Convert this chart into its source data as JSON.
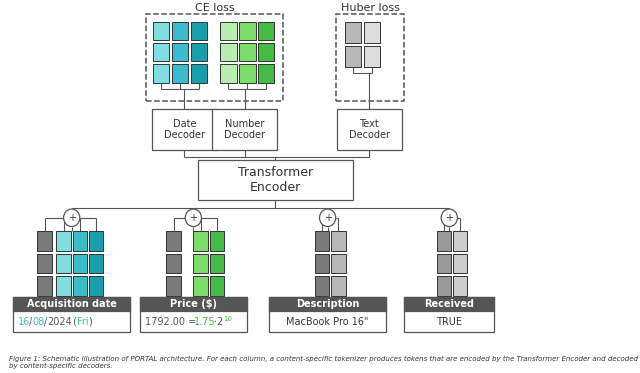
{
  "bg_color": "#ffffff",
  "colors": {
    "teal_dark": "#1b9eab",
    "teal_mid": "#3bbccc",
    "teal_light": "#5dd5d5",
    "teal_lighter": "#80dde0",
    "green_vlight": "#b8eeb0",
    "green_light": "#7ddd6a",
    "green_mid": "#44bb44",
    "green_dark": "#22aa22",
    "gray1": "#555555",
    "gray2": "#7a7a7a",
    "gray3": "#999999",
    "gray4": "#b8b8b8",
    "gray5": "#cccccc",
    "gray6": "#dddddd",
    "gray_hdr": "#555555",
    "date_cyan": "#3bbccc",
    "price_green": "#44bb44",
    "line_col": "#555555"
  },
  "ce_loss_label": "CE loss",
  "huber_loss_label": "Huber loss",
  "transformer_label": "Transformer\nEncoder",
  "decoder_labels": [
    "Date\nDecoder",
    "Number\nDecoder",
    "Text\nDecoder"
  ],
  "col_labels": [
    "Acquisition date",
    "Price ($)",
    "Description",
    "Received"
  ],
  "caption": "Figure 1: Schematic illustration of PORTAL architecture. For each column, a content-specific tokenizer produces tokens that are encoded by the Transformer Encoder and decoded by content-specific decoders."
}
